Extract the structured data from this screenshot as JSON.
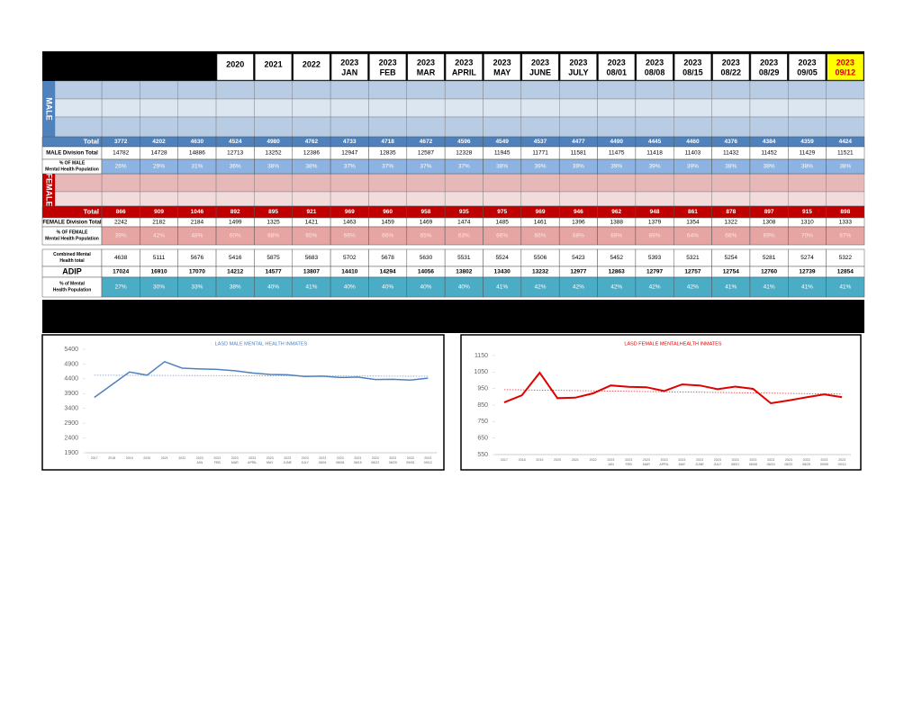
{
  "table": {
    "columns": [
      null,
      null,
      null,
      [
        "2020"
      ],
      [
        "2021"
      ],
      [
        "2022"
      ],
      [
        "2023",
        "JAN"
      ],
      [
        "2023",
        "FEB"
      ],
      [
        "2023",
        "MAR"
      ],
      [
        "2023",
        "APRIL"
      ],
      [
        "2023",
        "MAY"
      ],
      [
        "2023",
        "JUNE"
      ],
      [
        "2023",
        "JULY"
      ],
      [
        "2023",
        "08/01"
      ],
      [
        "2023",
        "08/08"
      ],
      [
        "2023",
        "08/15"
      ],
      [
        "2023",
        "08/22"
      ],
      [
        "2023",
        "08/29"
      ],
      [
        "2023",
        "09/05"
      ],
      [
        "2023",
        "09/12"
      ]
    ],
    "side_labels": [
      "MALE",
      "FEMALE"
    ],
    "rows": [
      {
        "label": "Total",
        "values": [
          3772,
          4202,
          4630,
          4524,
          4980,
          4762,
          4733,
          4718,
          4672,
          4596,
          4549,
          4537,
          4477,
          4490,
          4445,
          4460,
          4376,
          4384,
          4359,
          4424
        ]
      },
      {
        "label": "MALE Division Total",
        "values": [
          14782,
          14728,
          14886,
          12713,
          13252,
          12386,
          12947,
          12835,
          12587,
          12328,
          11945,
          11771,
          11581,
          11475,
          11418,
          11403,
          11432,
          11452,
          11429,
          11521
        ]
      },
      {
        "label": "% OF MALE Mental Health Population",
        "values": [
          26,
          29,
          31,
          36,
          38,
          38,
          37,
          37,
          37,
          37,
          38,
          39,
          39,
          39,
          39,
          39,
          38,
          38,
          38,
          38
        ],
        "value_labels": [
          "26%",
          "29%",
          "31%",
          "36%",
          "38%",
          "38%",
          "37%",
          "37%",
          "37%",
          "37%",
          "38%",
          "39%",
          "39%",
          "39%",
          "39%",
          "39%",
          "38%",
          "38%",
          "38%",
          "38%"
        ]
      },
      {
        "label": "Total",
        "values": [
          866,
          909,
          1046,
          892,
          895,
          921,
          969,
          960,
          958,
          935,
          975,
          969,
          946,
          962,
          948,
          861,
          878,
          897,
          915,
          898
        ]
      },
      {
        "label": "FEMALE Division Total",
        "values": [
          2242,
          2182,
          2184,
          1499,
          1325,
          1421,
          1463,
          1459,
          1469,
          1474,
          1485,
          1461,
          1396,
          1388,
          1379,
          1354,
          1322,
          1308,
          1310,
          1333
        ]
      },
      {
        "label": "% OF FEMALE Mental Health Population",
        "values": [
          39,
          42,
          48,
          60,
          68,
          65,
          66,
          66,
          65,
          63,
          66,
          66,
          68,
          69,
          69,
          64,
          66,
          69,
          70,
          67
        ],
        "value_labels": [
          "39%",
          "42%",
          "48%",
          "60%",
          "68%",
          "65%",
          "66%",
          "66%",
          "65%",
          "63%",
          "66%",
          "66%",
          "68%",
          "69%",
          "69%",
          "64%",
          "66%",
          "69%",
          "70%",
          "67%"
        ]
      },
      {
        "label": "Combined Mental Health total",
        "values": [
          4638,
          5111,
          5676,
          5416,
          5875,
          5683,
          5702,
          5678,
          5630,
          5531,
          5524,
          5506,
          5423,
          5452,
          5393,
          5321,
          5254,
          5281,
          5274,
          5322
        ]
      },
      {
        "label": "ADIP",
        "values": [
          17024,
          16910,
          17070,
          14212,
          14577,
          13807,
          14410,
          14294,
          14056,
          13802,
          13430,
          13232,
          12977,
          12863,
          12797,
          12757,
          12754,
          12760,
          12739,
          12854
        ]
      },
      {
        "label": "% of Mental Health Population",
        "values": [
          27,
          30,
          33,
          38,
          40,
          41,
          40,
          40,
          40,
          40,
          41,
          42,
          42,
          42,
          42,
          42,
          41,
          41,
          41,
          41
        ],
        "value_labels": [
          "27%",
          "30%",
          "33%",
          "38%",
          "40%",
          "41%",
          "40%",
          "40%",
          "40%",
          "40%",
          "41%",
          "42%",
          "42%",
          "42%",
          "42%",
          "42%",
          "41%",
          "41%",
          "41%",
          "41%"
        ]
      }
    ]
  },
  "chart_data": [
    {
      "type": "line",
      "title": "LASD MALE MENTAL HEALTH INMATES",
      "color": "#4f81bd",
      "trendline": true,
      "categories": [
        "2017",
        "2018",
        "2019",
        "2020",
        "2021",
        "2022",
        "2023 JAN",
        "2023 FEB",
        "2023 MAR",
        "2023 APRIL",
        "2023 MAY",
        "2023 JUNE",
        "2023 JULY",
        "2023 08/01",
        "2023 08/08",
        "2023 08/15",
        "2023 08/22",
        "2023 08/29",
        "2023 09/05",
        "2023 09/12"
      ],
      "values": [
        3772,
        4202,
        4630,
        4524,
        4980,
        4762,
        4733,
        4718,
        4672,
        4596,
        4549,
        4537,
        4477,
        4490,
        4445,
        4460,
        4376,
        4384,
        4359,
        4424
      ],
      "ylim": [
        1900,
        5400
      ],
      "yticks": [
        1900,
        2400,
        2900,
        3400,
        3900,
        4400,
        4900,
        5400
      ]
    },
    {
      "type": "line",
      "title": "LASD FEMALE MENTALHEALTH INMATES",
      "color": "#e00000",
      "trendline": true,
      "categories": [
        "2017",
        "2018",
        "2019",
        "2020",
        "2021",
        "2022",
        "2023 JAN",
        "2023 FEB",
        "2023 MAR",
        "2023 APRIL",
        "2023 MAY",
        "2023 JUNE",
        "2023 JULY",
        "2023 08/01",
        "2023 08/08",
        "2023 08/15",
        "2023 08/22",
        "2023 08/29",
        "2023 09/05",
        "2023 09/12"
      ],
      "values": [
        866,
        909,
        1046,
        892,
        895,
        921,
        969,
        960,
        958,
        935,
        975,
        969,
        946,
        962,
        948,
        861,
        878,
        897,
        915,
        898
      ],
      "ylim": [
        550,
        1150
      ],
      "yticks": [
        550,
        650,
        750,
        850,
        950,
        1050,
        1150
      ]
    }
  ]
}
